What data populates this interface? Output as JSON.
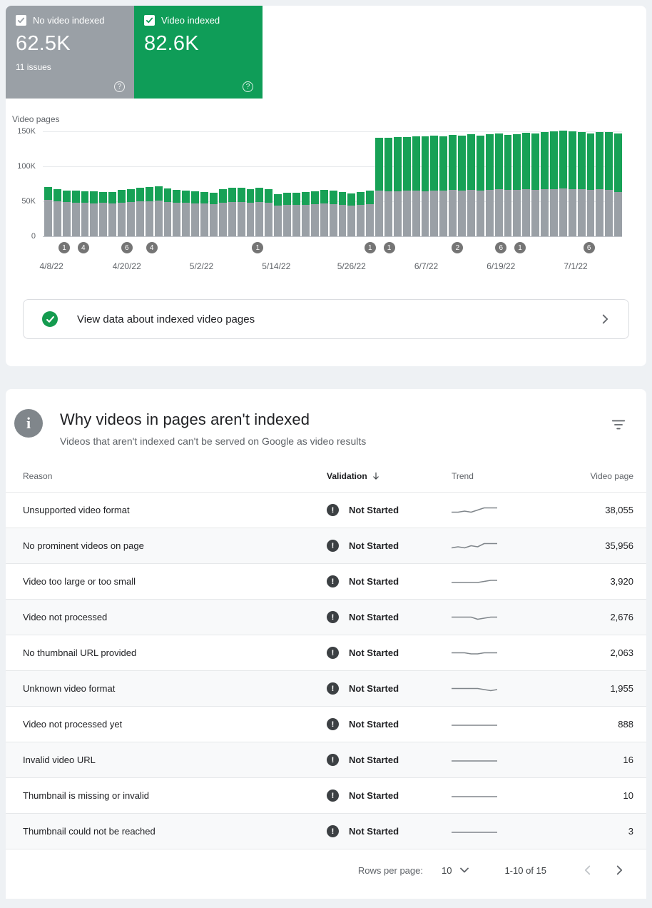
{
  "stats": {
    "not_indexed": {
      "label": "No video indexed",
      "value": "62.5K",
      "issues": "11 issues",
      "color": "#9aa0a6",
      "checked": true
    },
    "indexed": {
      "label": "Video indexed",
      "value": "82.6K",
      "color": "#0f9d58",
      "checked": true
    }
  },
  "chart_data": {
    "type": "bar",
    "stacked": true,
    "axis_title": "Video pages",
    "y_unit": "K",
    "ylim": [
      0,
      150
    ],
    "yticks": [
      "150K",
      "100K",
      "50K",
      "0"
    ],
    "x_labels": [
      {
        "label": "4/8/22",
        "pos": 0.015
      },
      {
        "label": "4/20/22",
        "pos": 0.145
      },
      {
        "label": "5/2/22",
        "pos": 0.274
      },
      {
        "label": "5/14/22",
        "pos": 0.403
      },
      {
        "label": "5/26/22",
        "pos": 0.533
      },
      {
        "label": "6/7/22",
        "pos": 0.662
      },
      {
        "label": "6/19/22",
        "pos": 0.791
      },
      {
        "label": "7/1/22",
        "pos": 0.92
      }
    ],
    "series": [
      {
        "name": "No video indexed",
        "color": "#9aa0a6",
        "values": [
          52,
          50,
          49,
          48,
          48,
          47,
          48,
          47,
          48,
          49,
          50,
          50,
          51,
          49,
          48,
          48,
          47,
          47,
          46,
          48,
          49,
          49,
          48,
          49,
          48,
          44,
          45,
          45,
          45,
          46,
          47,
          46,
          45,
          44,
          45,
          46,
          65,
          64,
          64,
          65,
          65,
          64,
          65,
          65,
          66,
          65,
          66,
          65,
          66,
          67,
          66,
          66,
          67,
          66,
          67,
          67,
          68,
          67,
          67,
          66,
          67,
          66,
          63
        ]
      },
      {
        "name": "Video indexed",
        "color": "#17a156",
        "values": [
          18,
          17,
          16,
          17,
          16,
          17,
          15,
          16,
          18,
          18,
          19,
          20,
          20,
          19,
          18,
          17,
          17,
          16,
          16,
          19,
          20,
          20,
          19,
          20,
          19,
          16,
          17,
          17,
          18,
          18,
          19,
          19,
          18,
          17,
          18,
          19,
          75,
          76,
          77,
          76,
          77,
          78,
          78,
          77,
          78,
          78,
          79,
          78,
          79,
          79,
          78,
          79,
          80,
          80,
          81,
          82,
          82,
          82,
          81,
          80,
          81,
          82,
          82.6
        ]
      }
    ],
    "annotations": [
      {
        "value": "1",
        "pos": 0.037
      },
      {
        "value": "4",
        "pos": 0.07
      },
      {
        "value": "6",
        "pos": 0.145
      },
      {
        "value": "4",
        "pos": 0.188
      },
      {
        "value": "1",
        "pos": 0.371
      },
      {
        "value": "1",
        "pos": 0.565
      },
      {
        "value": "1",
        "pos": 0.598
      },
      {
        "value": "2",
        "pos": 0.716
      },
      {
        "value": "6",
        "pos": 0.791
      },
      {
        "value": "1",
        "pos": 0.824
      },
      {
        "value": "6",
        "pos": 0.943
      }
    ]
  },
  "view_data": {
    "label": "View data about indexed video pages"
  },
  "reasons": {
    "title": "Why videos in pages aren't indexed",
    "subtitle": "Videos that aren't indexed can't be served on Google as video results",
    "columns": {
      "reason": "Reason",
      "validation": "Validation",
      "trend": "Trend",
      "video_page": "Video page"
    },
    "rows": [
      {
        "reason": "Unsupported video format",
        "validation": "Not Started",
        "trend": [
          3,
          3,
          4,
          3,
          5,
          7,
          7,
          7
        ],
        "video_page": "38,055"
      },
      {
        "reason": "No prominent videos on page",
        "validation": "Not Started",
        "trend": [
          3,
          4,
          3,
          5,
          4,
          7,
          7,
          7
        ],
        "video_page": "35,956"
      },
      {
        "reason": "Video too large or too small",
        "validation": "Not Started",
        "trend": [
          4,
          4,
          4,
          4,
          4,
          5,
          6,
          6
        ],
        "video_page": "3,920"
      },
      {
        "reason": "Video not processed",
        "validation": "Not Started",
        "trend": [
          5,
          5,
          5,
          5,
          3,
          4,
          5,
          5
        ],
        "video_page": "2,676"
      },
      {
        "reason": "No thumbnail URL provided",
        "validation": "Not Started",
        "trend": [
          5,
          5,
          5,
          4,
          4,
          5,
          5,
          5
        ],
        "video_page": "2,063"
      },
      {
        "reason": "Unknown video format",
        "validation": "Not Started",
        "trend": [
          5,
          5,
          5,
          5,
          5,
          4,
          3,
          4
        ],
        "video_page": "1,955"
      },
      {
        "reason": "Video not processed yet",
        "validation": "Not Started",
        "trend": [
          4,
          4,
          4,
          4,
          4,
          4,
          4,
          4
        ],
        "video_page": "888"
      },
      {
        "reason": "Invalid video URL",
        "validation": "Not Started",
        "trend": [
          4,
          4,
          4,
          4,
          4,
          4,
          4,
          4
        ],
        "video_page": "16"
      },
      {
        "reason": "Thumbnail is missing or invalid",
        "validation": "Not Started",
        "trend": [
          4,
          4,
          4,
          4,
          4,
          4,
          4,
          4
        ],
        "video_page": "10"
      },
      {
        "reason": "Thumbnail could not be reached",
        "validation": "Not Started",
        "trend": [
          4,
          4,
          4,
          4,
          4,
          4,
          4,
          4
        ],
        "video_page": "3"
      }
    ]
  },
  "pagination": {
    "rows_per_page_label": "Rows per page:",
    "rows_per_page": "10",
    "range": "1-10 of 15"
  }
}
